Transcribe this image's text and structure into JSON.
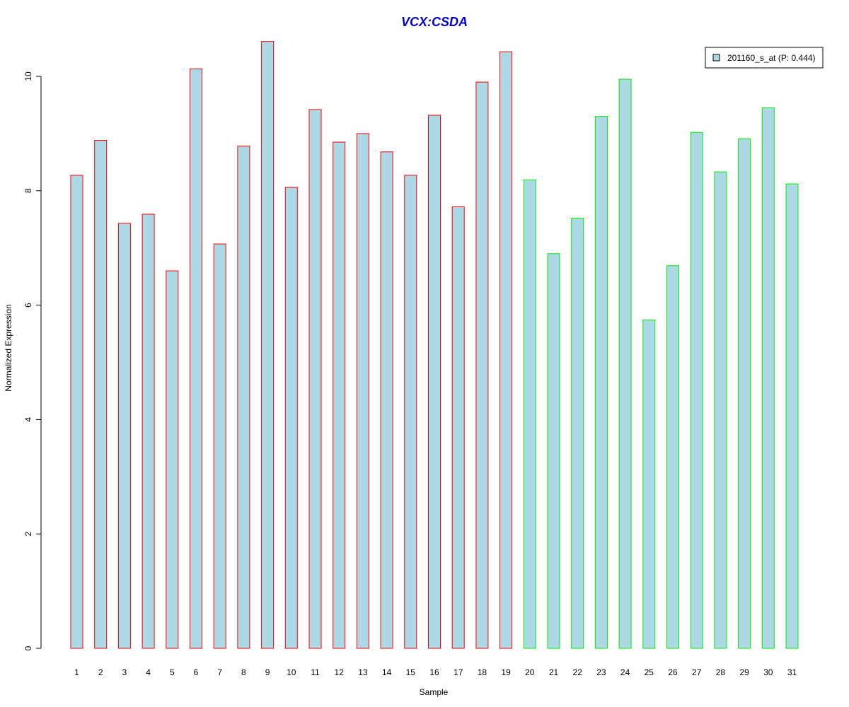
{
  "chart_data": {
    "type": "bar",
    "title": "VCX:CSDA",
    "xlabel": "Sample",
    "ylabel": "Normalized Expression",
    "ylim": [
      0,
      10
    ],
    "yticks": [
      "0",
      "2",
      "4",
      "6",
      "8",
      "10"
    ],
    "categories": [
      "1",
      "2",
      "3",
      "4",
      "5",
      "6",
      "7",
      "8",
      "9",
      "10",
      "11",
      "12",
      "13",
      "14",
      "15",
      "16",
      "17",
      "18",
      "19",
      "20",
      "21",
      "22",
      "23",
      "24",
      "25",
      "26",
      "27",
      "28",
      "29",
      "30",
      "31"
    ],
    "series": [
      {
        "name": "201160_s_at (P: 0.444)",
        "values": [
          8.27,
          8.88,
          7.43,
          7.59,
          6.6,
          10.13,
          7.07,
          8.78,
          10.61,
          8.06,
          9.42,
          8.85,
          9.0,
          8.68,
          8.27,
          9.32,
          7.72,
          9.9,
          10.43,
          8.19,
          6.9,
          7.52,
          9.3,
          9.95,
          5.74,
          6.69,
          9.02,
          8.33,
          8.91,
          9.45,
          8.12
        ]
      }
    ],
    "bar_fill": "#add8e6",
    "border_colors": {
      "group_1": "#ff0000",
      "group_2": "#00ee00"
    },
    "group_1_count": 19,
    "title_color": "#0000cc",
    "legend_position": "top-right",
    "grid": false
  }
}
